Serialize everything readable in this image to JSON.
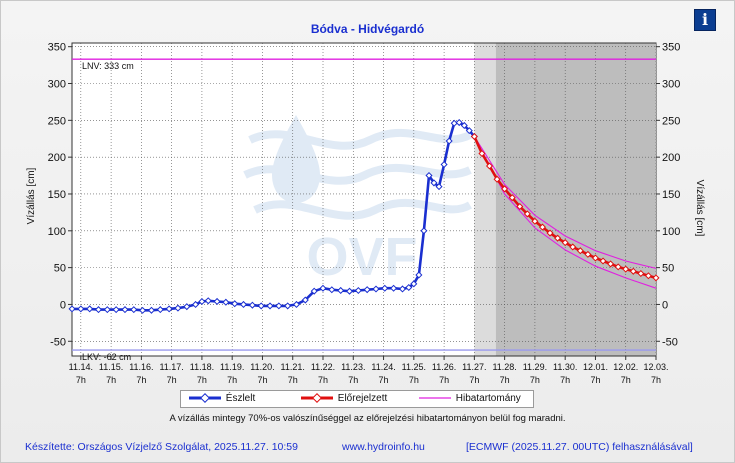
{
  "page": {
    "title": "Bódva - Hidvégardó",
    "info_icon": "info-icon",
    "note": "A vízállás mintegy 70%-os valószínűséggel az előrejelzési hibatartományon belül fog maradni.",
    "footer": {
      "author": "Készítette: Országos Vízjelző Szolgálat, 2025.11.27. 10:59",
      "website": "www.hydroinfo.hu",
      "source": "[ECMWF (2025.11.27. 00UTC) felhasználásával]"
    },
    "watermark": "OVF",
    "colors": {
      "observed": "#1a2fd0",
      "forecast": "#e01010",
      "range": "#e020e0",
      "lnv": "#e020e0",
      "lkv": "#9a9aee"
    }
  },
  "chart_data": {
    "type": "line",
    "ylabel_left": "Vízállás [cm]",
    "ylabel_right": "Vízállás [cm]",
    "ylim": [
      -70,
      355
    ],
    "yticks": [
      -50,
      0,
      50,
      100,
      150,
      200,
      250,
      300,
      350
    ],
    "xlim": [
      "2025-11-14 00:00",
      "2025-12-03 07:00"
    ],
    "xticks": [
      {
        "t": "2025-11-14 07:00",
        "label": "11.14.",
        "sub": "7h"
      },
      {
        "t": "2025-11-15 07:00",
        "label": "11.15.",
        "sub": "7h"
      },
      {
        "t": "2025-11-16 07:00",
        "label": "11.16.",
        "sub": "7h"
      },
      {
        "t": "2025-11-17 07:00",
        "label": "11.17.",
        "sub": "7h"
      },
      {
        "t": "2025-11-18 07:00",
        "label": "11.18.",
        "sub": "7h"
      },
      {
        "t": "2025-11-19 07:00",
        "label": "11.19.",
        "sub": "7h"
      },
      {
        "t": "2025-11-20 07:00",
        "label": "11.20.",
        "sub": "7h"
      },
      {
        "t": "2025-11-21 07:00",
        "label": "11.21.",
        "sub": "7h"
      },
      {
        "t": "2025-11-22 07:00",
        "label": "11.22.",
        "sub": "7h"
      },
      {
        "t": "2025-11-23 07:00",
        "label": "11.23.",
        "sub": "7h"
      },
      {
        "t": "2025-11-24 07:00",
        "label": "11.24.",
        "sub": "7h"
      },
      {
        "t": "2025-11-25 07:00",
        "label": "11.25.",
        "sub": "7h"
      },
      {
        "t": "2025-11-26 07:00",
        "label": "11.26.",
        "sub": "7h"
      },
      {
        "t": "2025-11-27 07:00",
        "label": "11.27.",
        "sub": "7h"
      },
      {
        "t": "2025-11-28 07:00",
        "label": "11.28.",
        "sub": "7h"
      },
      {
        "t": "2025-11-29 07:00",
        "label": "11.29.",
        "sub": "7h"
      },
      {
        "t": "2025-11-30 07:00",
        "label": "11.30.",
        "sub": "7h"
      },
      {
        "t": "2025-12-01 07:00",
        "label": "12.01.",
        "sub": "7h"
      },
      {
        "t": "2025-12-02 07:00",
        "label": "12.02.",
        "sub": "7h"
      },
      {
        "t": "2025-12-03 07:00",
        "label": "12.03.",
        "sub": "7h"
      }
    ],
    "shaded_regions": [
      {
        "from": "2025-11-27 07:00",
        "to": "2025-11-28 00:00",
        "color": "#dcdcdc"
      },
      {
        "from": "2025-11-28 00:00",
        "to": "2025-12-03 07:00",
        "color": "#bdbdbd"
      }
    ],
    "reference_lines": [
      {
        "name": "LNV",
        "label": "LNV: 333 cm",
        "y": 333,
        "color": "#e020e0"
      },
      {
        "name": "LKV",
        "label": "LKV: -62 cm",
        "y": -62,
        "color": "#9a9aee"
      }
    ],
    "grid": true,
    "legend_position": "bottom",
    "series": [
      {
        "name": "Észlelt",
        "color": "#1a2fd0",
        "points": [
          [
            "2025-11-14 00:00",
            -6
          ],
          [
            "2025-11-14 07:00",
            -6
          ],
          [
            "2025-11-14 14:00",
            -6
          ],
          [
            "2025-11-14 21:00",
            -7
          ],
          [
            "2025-11-15 04:00",
            -7
          ],
          [
            "2025-11-15 11:00",
            -7
          ],
          [
            "2025-11-15 18:00",
            -7
          ],
          [
            "2025-11-16 01:00",
            -7
          ],
          [
            "2025-11-16 08:00",
            -8
          ],
          [
            "2025-11-16 15:00",
            -8
          ],
          [
            "2025-11-16 22:00",
            -7
          ],
          [
            "2025-11-17 05:00",
            -6
          ],
          [
            "2025-11-17 12:00",
            -5
          ],
          [
            "2025-11-17 19:00",
            -3
          ],
          [
            "2025-11-18 02:00",
            0
          ],
          [
            "2025-11-18 07:00",
            4
          ],
          [
            "2025-11-18 12:00",
            5
          ],
          [
            "2025-11-18 19:00",
            4
          ],
          [
            "2025-11-19 02:00",
            3
          ],
          [
            "2025-11-19 09:00",
            1
          ],
          [
            "2025-11-19 16:00",
            0
          ],
          [
            "2025-11-19 23:00",
            -1
          ],
          [
            "2025-11-20 06:00",
            -2
          ],
          [
            "2025-11-20 13:00",
            -2
          ],
          [
            "2025-11-20 20:00",
            -2
          ],
          [
            "2025-11-21 03:00",
            -2
          ],
          [
            "2025-11-21 10:00",
            0
          ],
          [
            "2025-11-21 17:00",
            6
          ],
          [
            "2025-11-22 00:00",
            18
          ],
          [
            "2025-11-22 07:00",
            22
          ],
          [
            "2025-11-22 14:00",
            20
          ],
          [
            "2025-11-22 21:00",
            19
          ],
          [
            "2025-11-23 04:00",
            18
          ],
          [
            "2025-11-23 11:00",
            19
          ],
          [
            "2025-11-23 18:00",
            20
          ],
          [
            "2025-11-24 01:00",
            21
          ],
          [
            "2025-11-24 08:00",
            22
          ],
          [
            "2025-11-24 15:00",
            22
          ],
          [
            "2025-11-24 22:00",
            21
          ],
          [
            "2025-11-25 03:00",
            23
          ],
          [
            "2025-11-25 07:00",
            28
          ],
          [
            "2025-11-25 11:00",
            40
          ],
          [
            "2025-11-25 15:00",
            100
          ],
          [
            "2025-11-25 19:00",
            175
          ],
          [
            "2025-11-25 23:00",
            165
          ],
          [
            "2025-11-26 03:00",
            160
          ],
          [
            "2025-11-26 07:00",
            190
          ],
          [
            "2025-11-26 11:00",
            222
          ],
          [
            "2025-11-26 15:00",
            246
          ],
          [
            "2025-11-26 19:00",
            247
          ],
          [
            "2025-11-26 23:00",
            243
          ],
          [
            "2025-11-27 03:00",
            236
          ],
          [
            "2025-11-27 07:00",
            228
          ]
        ]
      },
      {
        "name": "Előrejelzett",
        "color": "#e01010",
        "points": [
          [
            "2025-11-27 07:00",
            228
          ],
          [
            "2025-11-27 13:00",
            205
          ],
          [
            "2025-11-27 19:00",
            188
          ],
          [
            "2025-11-28 01:00",
            170
          ],
          [
            "2025-11-28 07:00",
            157
          ],
          [
            "2025-11-28 13:00",
            145
          ],
          [
            "2025-11-28 19:00",
            133
          ],
          [
            "2025-11-29 01:00",
            123
          ],
          [
            "2025-11-29 07:00",
            113
          ],
          [
            "2025-11-29 13:00",
            105
          ],
          [
            "2025-11-29 19:00",
            97
          ],
          [
            "2025-11-30 01:00",
            90
          ],
          [
            "2025-11-30 07:00",
            84
          ],
          [
            "2025-11-30 13:00",
            78
          ],
          [
            "2025-11-30 19:00",
            73
          ],
          [
            "2025-12-01 01:00",
            68
          ],
          [
            "2025-12-01 07:00",
            63
          ],
          [
            "2025-12-01 13:00",
            59
          ],
          [
            "2025-12-01 19:00",
            55
          ],
          [
            "2025-12-02 01:00",
            51
          ],
          [
            "2025-12-02 07:00",
            48
          ],
          [
            "2025-12-02 13:00",
            45
          ],
          [
            "2025-12-02 19:00",
            42
          ],
          [
            "2025-12-03 01:00",
            39
          ],
          [
            "2025-12-03 07:00",
            36
          ]
        ]
      },
      {
        "name": "Hibatartomány",
        "color": "#e020e0",
        "upper": [
          [
            "2025-11-27 07:00",
            228
          ],
          [
            "2025-11-28 07:00",
            163
          ],
          [
            "2025-11-29 07:00",
            121
          ],
          [
            "2025-11-30 07:00",
            93
          ],
          [
            "2025-12-01 07:00",
            73
          ],
          [
            "2025-12-02 07:00",
            59
          ],
          [
            "2025-12-03 07:00",
            49
          ]
        ],
        "lower": [
          [
            "2025-11-27 07:00",
            228
          ],
          [
            "2025-11-28 07:00",
            150
          ],
          [
            "2025-11-29 07:00",
            104
          ],
          [
            "2025-11-30 07:00",
            74
          ],
          [
            "2025-12-01 07:00",
            52
          ],
          [
            "2025-12-02 07:00",
            36
          ],
          [
            "2025-12-03 07:00",
            22
          ]
        ]
      }
    ]
  }
}
